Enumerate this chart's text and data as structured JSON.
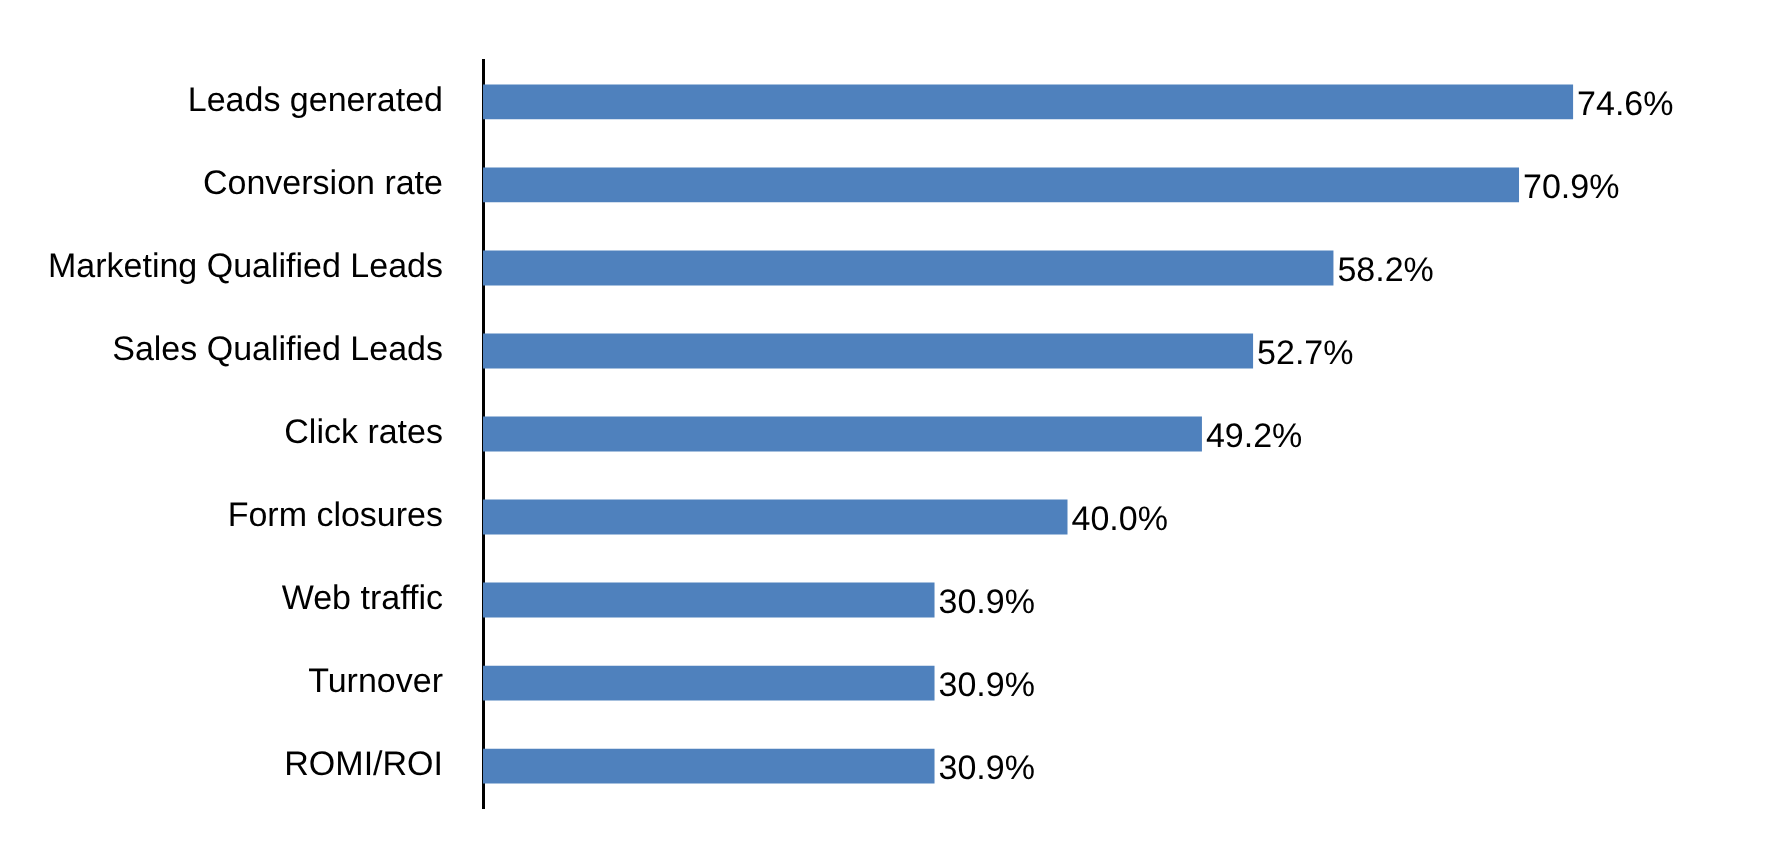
{
  "chart_data": {
    "type": "bar",
    "orientation": "horizontal",
    "categories": [
      "Leads generated",
      "Conversion rate",
      "Marketing Qualified Leads",
      "Sales Qualified Leads",
      "Click rates",
      "Form closures",
      "Web traffic",
      "Turnover",
      "ROMI/ROI"
    ],
    "values": [
      74.6,
      70.9,
      58.2,
      52.7,
      49.2,
      40.0,
      30.9,
      30.9,
      30.9
    ],
    "value_labels": [
      "74.6%",
      "70.9%",
      "58.2%",
      "52.7%",
      "49.2%",
      "40.0%",
      "30.9%",
      "30.9%",
      "30.9%"
    ],
    "color": "#4f81bd",
    "grid": false,
    "legend": false,
    "tick_labels": "y"
  }
}
